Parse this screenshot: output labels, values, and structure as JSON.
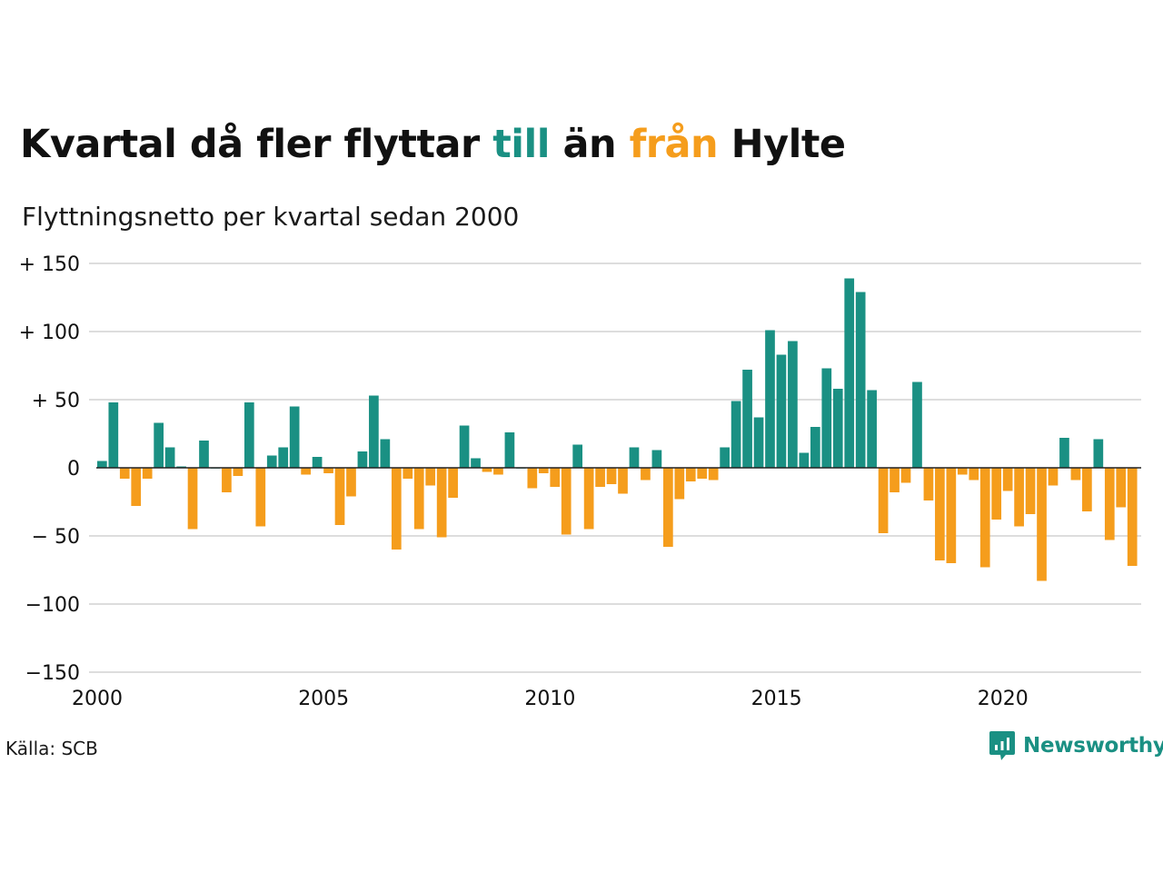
{
  "title": {
    "part1": "Kvartal då fler flyttar ",
    "positive_word": "till",
    "part2": " än ",
    "negative_word": "från",
    "part3": " Hylte"
  },
  "subtitle": "Flyttningsnetto per kvartal sedan 2000",
  "source": "Källa: SCB",
  "logo_text": "Newsworthy",
  "colors": {
    "positive": "#1a9083",
    "negative": "#f59d1c",
    "grid": "#dddddd",
    "zero_line": "#222222",
    "text": "#111111"
  },
  "chart_data": {
    "type": "bar",
    "start_year": 2000,
    "quarters_per_year": 4,
    "values": [
      5,
      48,
      -8,
      -28,
      -8,
      33,
      15,
      1,
      -45,
      20,
      0,
      -18,
      -6,
      48,
      -43,
      9,
      15,
      45,
      -5,
      8,
      -4,
      -42,
      -21,
      12,
      53,
      21,
      -60,
      -8,
      -45,
      -13,
      -51,
      -22,
      31,
      7,
      -3,
      -5,
      26,
      0,
      -15,
      -4,
      -14,
      -49,
      17,
      -45,
      -14,
      -12,
      -19,
      15,
      -9,
      13,
      -58,
      -23,
      -10,
      -8,
      -9,
      15,
      49,
      72,
      37,
      101,
      83,
      93,
      11,
      30,
      73,
      58,
      139,
      129,
      57,
      -48,
      -18,
      -11,
      63,
      -24,
      -68,
      -70,
      -5,
      -9,
      -73,
      -38,
      -17,
      -43,
      -34,
      -83,
      -13,
      22,
      -9,
      -32,
      21,
      -53,
      -29,
      -72
    ],
    "ylim": [
      -150,
      150
    ],
    "yticks": [
      {
        "value": 150,
        "label": "+ 150"
      },
      {
        "value": 100,
        "label": "+ 100"
      },
      {
        "value": 50,
        "label": "+  50"
      },
      {
        "value": 0,
        "label": "0"
      },
      {
        "value": -50,
        "label": "− 50"
      },
      {
        "value": -100,
        "label": "−100"
      },
      {
        "value": -150,
        "label": "−150"
      }
    ],
    "xticks": [
      {
        "year": 2000,
        "label": "2000"
      },
      {
        "year": 2005,
        "label": "2005"
      },
      {
        "year": 2010,
        "label": "2010"
      },
      {
        "year": 2015,
        "label": "2015"
      },
      {
        "year": 2020,
        "label": "2020"
      }
    ],
    "grid": true,
    "legend": "none"
  }
}
